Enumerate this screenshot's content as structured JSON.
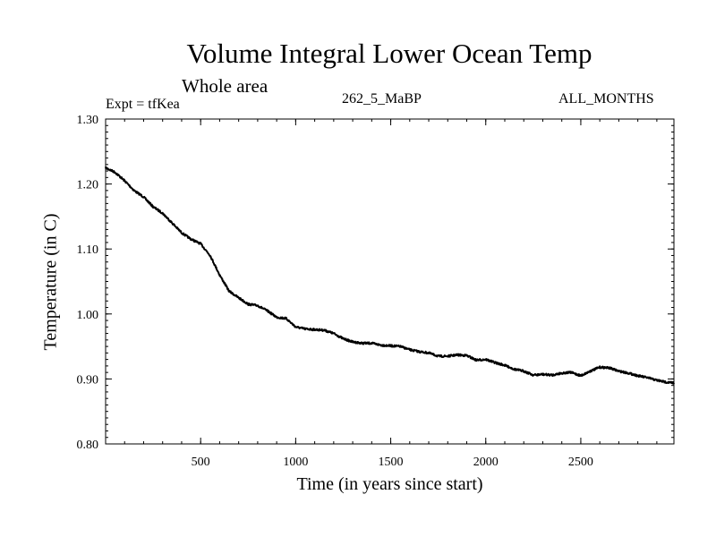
{
  "chart_data": {
    "type": "line",
    "title": "Volume Integral Lower Ocean Temp",
    "subtitle": "Whole area",
    "expt_label": "Expt = tfKea",
    "center_label": "262_5_MaBP",
    "right_label": "ALL_MONTHS",
    "xlabel": "Time (in years since start)",
    "ylabel": "Temperature (in C)",
    "xlim": [
      0,
      2990
    ],
    "ylim": [
      0.8,
      1.3
    ],
    "x_ticks": [
      500,
      1000,
      1500,
      2000,
      2500
    ],
    "x_tick_labels": [
      "500",
      "1000",
      "1500",
      "2000",
      "2500"
    ],
    "y_ticks": [
      0.8,
      0.9,
      1.0,
      1.1,
      1.2,
      1.3
    ],
    "y_tick_labels": [
      "0.80",
      "0.90",
      "1.00",
      "1.10",
      "1.20",
      "1.30"
    ],
    "grid": false,
    "series": [
      {
        "color": "#000000",
        "x": [
          0,
          50,
          100,
          150,
          200,
          250,
          300,
          350,
          400,
          450,
          500,
          550,
          600,
          650,
          700,
          750,
          800,
          850,
          900,
          950,
          1000,
          1050,
          1100,
          1150,
          1200,
          1250,
          1300,
          1350,
          1400,
          1450,
          1500,
          1550,
          1600,
          1650,
          1700,
          1750,
          1800,
          1850,
          1900,
          1950,
          2000,
          2050,
          2100,
          2150,
          2200,
          2250,
          2300,
          2350,
          2400,
          2450,
          2500,
          2550,
          2600,
          2650,
          2700,
          2750,
          2800,
          2850,
          2900,
          2950,
          2990
        ],
        "y": [
          1.225,
          1.218,
          1.205,
          1.19,
          1.18,
          1.165,
          1.155,
          1.14,
          1.125,
          1.115,
          1.108,
          1.09,
          1.06,
          1.035,
          1.025,
          1.015,
          1.013,
          1.005,
          0.995,
          0.993,
          0.98,
          0.977,
          0.976,
          0.975,
          0.97,
          0.962,
          0.957,
          0.955,
          0.955,
          0.952,
          0.951,
          0.95,
          0.945,
          0.942,
          0.94,
          0.935,
          0.935,
          0.937,
          0.936,
          0.929,
          0.93,
          0.925,
          0.921,
          0.915,
          0.912,
          0.906,
          0.907,
          0.906,
          0.909,
          0.91,
          0.905,
          0.912,
          0.918,
          0.917,
          0.912,
          0.909,
          0.905,
          0.902,
          0.898,
          0.895,
          0.894
        ]
      }
    ]
  }
}
